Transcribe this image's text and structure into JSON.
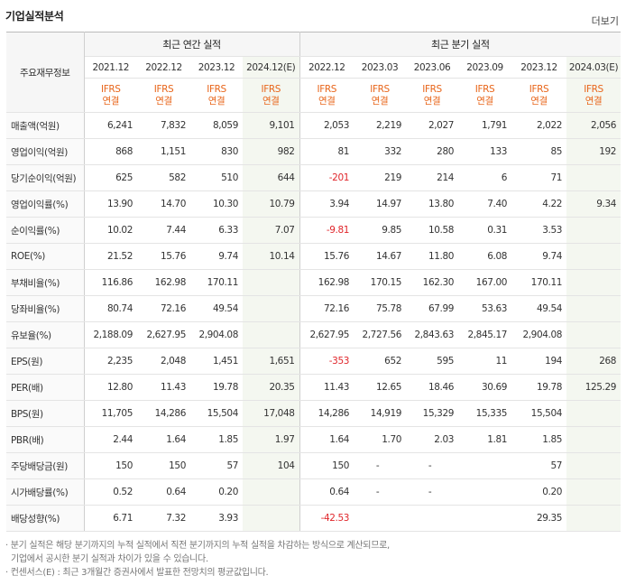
{
  "header": {
    "title": "기업실적분석",
    "more": "더보기"
  },
  "table": {
    "label_head": "주요재무정보",
    "annual_group": "최근 연간 실적",
    "quarter_group": "최근 분기 실적",
    "annual_periods": [
      "2021.12",
      "2022.12",
      "2023.12",
      "2024.12(E)"
    ],
    "quarter_periods": [
      "2022.12",
      "2023.03",
      "2023.06",
      "2023.09",
      "2023.12",
      "2024.03(E)"
    ],
    "ifrs_top": "IFRS",
    "ifrs_bottom": "연결",
    "rows": [
      {
        "label": "매출액(억원)",
        "values": [
          "6,241",
          "7,832",
          "8,059",
          "9,101",
          "2,053",
          "2,219",
          "2,027",
          "1,791",
          "2,022",
          "2,056"
        ]
      },
      {
        "label": "영업이익(억원)",
        "values": [
          "868",
          "1,151",
          "830",
          "982",
          "81",
          "332",
          "280",
          "133",
          "85",
          "192"
        ]
      },
      {
        "label": "당기순이익(억원)",
        "values": [
          "625",
          "582",
          "510",
          "644",
          "-201",
          "219",
          "214",
          "6",
          "71",
          ""
        ]
      },
      {
        "label": "영업이익률(%)",
        "values": [
          "13.90",
          "14.70",
          "10.30",
          "10.79",
          "3.94",
          "14.97",
          "13.80",
          "7.40",
          "4.22",
          "9.34"
        ]
      },
      {
        "label": "순이익률(%)",
        "values": [
          "10.02",
          "7.44",
          "6.33",
          "7.07",
          "-9.81",
          "9.85",
          "10.58",
          "0.31",
          "3.53",
          ""
        ]
      },
      {
        "label": "ROE(%)",
        "values": [
          "21.52",
          "15.76",
          "9.74",
          "10.14",
          "15.76",
          "14.67",
          "11.80",
          "6.08",
          "9.74",
          ""
        ]
      },
      {
        "label": "부채비율(%)",
        "values": [
          "116.86",
          "162.98",
          "170.11",
          "",
          "162.98",
          "170.15",
          "162.30",
          "167.00",
          "170.11",
          ""
        ]
      },
      {
        "label": "당좌비율(%)",
        "values": [
          "80.74",
          "72.16",
          "49.54",
          "",
          "72.16",
          "75.78",
          "67.99",
          "53.63",
          "49.54",
          ""
        ]
      },
      {
        "label": "유보율(%)",
        "values": [
          "2,188.09",
          "2,627.95",
          "2,904.08",
          "",
          "2,627.95",
          "2,727.56",
          "2,843.63",
          "2,845.17",
          "2,904.08",
          ""
        ]
      },
      {
        "label": "EPS(원)",
        "values": [
          "2,235",
          "2,048",
          "1,451",
          "1,651",
          "-353",
          "652",
          "595",
          "11",
          "194",
          "268"
        ]
      },
      {
        "label": "PER(배)",
        "values": [
          "12.80",
          "11.43",
          "19.78",
          "20.35",
          "11.43",
          "12.65",
          "18.46",
          "30.69",
          "19.78",
          "125.29"
        ]
      },
      {
        "label": "BPS(원)",
        "values": [
          "11,705",
          "14,286",
          "15,504",
          "17,048",
          "14,286",
          "14,919",
          "15,329",
          "15,335",
          "15,504",
          ""
        ]
      },
      {
        "label": "PBR(배)",
        "values": [
          "2.44",
          "1.64",
          "1.85",
          "1.97",
          "1.64",
          "1.70",
          "2.03",
          "1.81",
          "1.85",
          ""
        ]
      },
      {
        "label": "주당배당금(원)",
        "values": [
          "150",
          "150",
          "57",
          "104",
          "150",
          "-",
          "-",
          "",
          "57",
          ""
        ]
      },
      {
        "label": "시가배당률(%)",
        "values": [
          "0.52",
          "0.64",
          "0.20",
          "",
          "0.64",
          "-",
          "-",
          "",
          "0.20",
          ""
        ]
      },
      {
        "label": "배당성향(%)",
        "values": [
          "6.71",
          "7.32",
          "3.93",
          "",
          "-42.53",
          "",
          "",
          "",
          "29.35",
          ""
        ]
      }
    ]
  },
  "notes": [
    "· 분기 실적은 해당 분기까지의 누적 실적에서 직전 분기까지의 누적 실적을 차감하는 방식으로 계산되므로,",
    "  기업에서 공시한 분기 실적과 차이가 있을 수 있습니다.",
    "· 컨센서스(E) : 최근 3개월간 증권사에서 발표한 전망치의 평균값입니다."
  ],
  "colors": {
    "negative": "#e0262b",
    "ifrs": "#e8651a",
    "estimate_bg": "#f4f7f0"
  }
}
